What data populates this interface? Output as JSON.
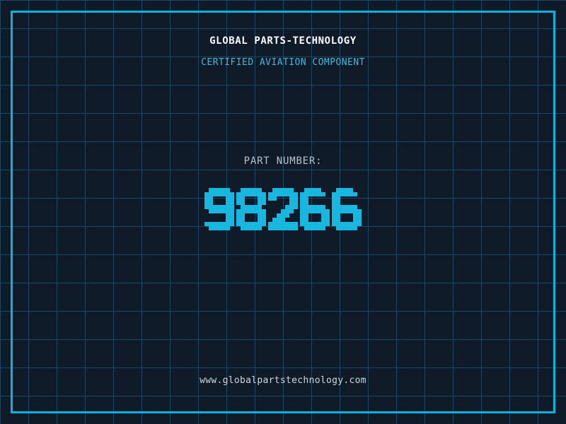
{
  "header": {
    "title": "GLOBAL PARTS-TECHNOLOGY",
    "subtitle": "CERTIFIED AVIATION COMPONENT"
  },
  "part": {
    "label": "PART NUMBER:",
    "number": "98266"
  },
  "footer": {
    "website": "www.globalpartstechnology.com"
  },
  "colors": {
    "background": "#0f1a29",
    "grid_line": "#19485f",
    "frame_cyan": "#0cb3da",
    "digit_cyan": "#18b7e0",
    "subtitle_cyan": "#45b7d9",
    "title_white": "#fdfdfd",
    "label_gray": "#b8c1ca",
    "url_gray": "#d0d8de"
  }
}
